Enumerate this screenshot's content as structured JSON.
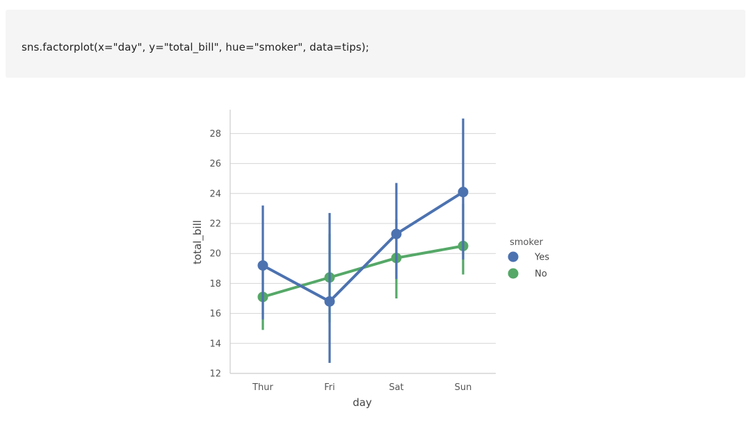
{
  "code_cell": {
    "code": "sns.factorplot(x=\"day\", y=\"total_bill\", hue=\"smoker\", data=tips);"
  },
  "chart_data": {
    "type": "line",
    "x_label": "day",
    "y_label": "total_bill",
    "categories": [
      "Thur",
      "Fri",
      "Sat",
      "Sun"
    ],
    "ylim": [
      12,
      29.5
    ],
    "y_ticks": [
      12,
      14,
      16,
      18,
      20,
      22,
      24,
      26,
      28
    ],
    "grid": "horizontal",
    "legend": {
      "title": "smoker",
      "position": "right"
    },
    "series": [
      {
        "name": "Yes",
        "color": "#4c72b0",
        "values": [
          19.2,
          16.8,
          21.3,
          24.1
        ],
        "ci_low": [
          15.6,
          12.7,
          18.3,
          19.6
        ],
        "ci_high": [
          23.2,
          22.7,
          24.7,
          29.0
        ]
      },
      {
        "name": "No",
        "color": "#55a868",
        "values": [
          17.1,
          18.4,
          19.7,
          20.5
        ],
        "ci_low": [
          14.9,
          15.4,
          17.0,
          18.6
        ],
        "ci_high": [
          19.4,
          21.3,
          22.3,
          23.3
        ]
      }
    ]
  }
}
